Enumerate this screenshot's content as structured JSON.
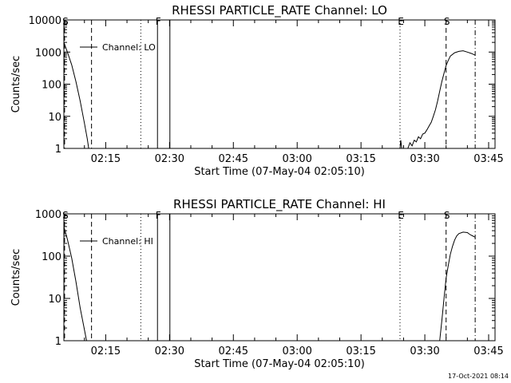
{
  "footer": {
    "timestamp": "17-Oct-2021 08:14"
  },
  "chart_data": [
    {
      "type": "line",
      "title": "RHESSI PARTICLE_RATE Channel: LO",
      "xlabel": "Start Time (07-May-04 02:05:10)",
      "ylabel": "Counts/sec",
      "x_scale": "time",
      "y_scale": "log",
      "xlim": [
        "02:05:10",
        "03:46:30"
      ],
      "ylim": [
        1,
        10000
      ],
      "x_ticks": [
        "02:15",
        "02:30",
        "02:45",
        "03:00",
        "03:15",
        "03:30",
        "03:45"
      ],
      "y_ticks": [
        "1",
        "10",
        "100",
        "1000",
        "10000"
      ],
      "legend": {
        "entries": [
          "Channel: LO"
        ],
        "position": "top-left"
      },
      "markers": [
        {
          "label": "S",
          "time": "02:05:20",
          "style": "dashed"
        },
        {
          "label": "",
          "time": "02:11:40",
          "style": "dashed"
        },
        {
          "label": "",
          "time": "02:23:15",
          "style": "dotted"
        },
        {
          "label": "F",
          "time": "02:27:10",
          "style": "solid"
        },
        {
          "label": "",
          "time": "02:30:05",
          "style": "solid"
        },
        {
          "label": "E",
          "time": "03:24:10",
          "style": "dotted"
        },
        {
          "label": "S",
          "time": "03:35:00",
          "style": "dashed"
        },
        {
          "label": "",
          "time": "03:41:50",
          "style": "dashdot"
        }
      ],
      "series": [
        {
          "name": "Channel: LO",
          "segments": [
            [
              [
                "02:05:10",
                2000
              ],
              [
                "02:06:00",
                1000
              ],
              [
                "02:07:00",
                400
              ],
              [
                "02:08:00",
                120
              ],
              [
                "02:09:00",
                30
              ],
              [
                "02:10:00",
                6
              ],
              [
                "02:10:40",
                2
              ],
              [
                "02:11:00",
                1
              ]
            ],
            [
              [
                "03:24:10",
                1
              ],
              [
                "03:24:20",
                1.8
              ],
              [
                "03:24:35",
                1
              ]
            ],
            [
              [
                "03:26:00",
                1
              ],
              [
                "03:26:30",
                1.5
              ],
              [
                "03:27:00",
                1.2
              ],
              [
                "03:27:30",
                1.8
              ],
              [
                "03:28:00",
                1.6
              ],
              [
                "03:28:30",
                2.3
              ],
              [
                "03:29:00",
                2
              ],
              [
                "03:29:30",
                2.8
              ],
              [
                "03:30:00",
                3
              ],
              [
                "03:30:30",
                3.8
              ],
              [
                "03:31:00",
                5
              ],
              [
                "03:31:30",
                6.5
              ],
              [
                "03:32:00",
                10
              ],
              [
                "03:32:30",
                16
              ],
              [
                "03:33:00",
                30
              ],
              [
                "03:33:30",
                60
              ],
              [
                "03:34:00",
                120
              ],
              [
                "03:34:30",
                220
              ],
              [
                "03:35:00",
                380
              ],
              [
                "03:35:30",
                550
              ],
              [
                "03:36:00",
                750
              ],
              [
                "03:37:00",
                950
              ],
              [
                "03:38:00",
                1050
              ],
              [
                "03:39:00",
                1100
              ],
              [
                "03:40:00",
                1000
              ],
              [
                "03:41:00",
                900
              ],
              [
                "03:41:50",
                800
              ]
            ]
          ]
        }
      ]
    },
    {
      "type": "line",
      "title": "RHESSI PARTICLE_RATE Channel: HI",
      "xlabel": "Start Time (07-May-04 02:05:10)",
      "ylabel": "Counts/sec",
      "x_scale": "time",
      "y_scale": "log",
      "xlim": [
        "02:05:10",
        "03:46:30"
      ],
      "ylim": [
        1,
        1000
      ],
      "x_ticks": [
        "02:15",
        "02:30",
        "02:45",
        "03:00",
        "03:15",
        "03:30",
        "03:45"
      ],
      "y_ticks": [
        "1",
        "10",
        "100",
        "1000"
      ],
      "legend": {
        "entries": [
          "Channel: HI"
        ],
        "position": "top-left"
      },
      "markers": [
        {
          "label": "S",
          "time": "02:05:20",
          "style": "dashed"
        },
        {
          "label": "",
          "time": "02:11:40",
          "style": "dashed"
        },
        {
          "label": "",
          "time": "02:23:15",
          "style": "dotted"
        },
        {
          "label": "F",
          "time": "02:27:10",
          "style": "solid"
        },
        {
          "label": "",
          "time": "02:30:05",
          "style": "solid"
        },
        {
          "label": "E",
          "time": "03:24:10",
          "style": "dotted"
        },
        {
          "label": "S",
          "time": "03:35:00",
          "style": "dashed"
        },
        {
          "label": "",
          "time": "03:41:50",
          "style": "dashdot"
        }
      ],
      "series": [
        {
          "name": "Channel: HI",
          "segments": [
            [
              [
                "02:05:10",
                500
              ],
              [
                "02:06:00",
                250
              ],
              [
                "02:07:00",
                90
              ],
              [
                "02:08:00",
                25
              ],
              [
                "02:09:00",
                6
              ],
              [
                "02:10:00",
                1.8
              ],
              [
                "02:10:30",
                1
              ]
            ],
            [
              [
                "03:33:30",
                1
              ],
              [
                "03:34:00",
                3
              ],
              [
                "03:34:30",
                10
              ],
              [
                "03:35:00",
                30
              ],
              [
                "03:35:30",
                60
              ],
              [
                "03:36:00",
                110
              ],
              [
                "03:36:30",
                170
              ],
              [
                "03:37:00",
                240
              ],
              [
                "03:37:30",
                300
              ],
              [
                "03:38:00",
                340
              ],
              [
                "03:39:00",
                370
              ],
              [
                "03:40:00",
                360
              ],
              [
                "03:40:30",
                330
              ],
              [
                "03:41:00",
                310
              ],
              [
                "03:41:50",
                280
              ]
            ]
          ]
        }
      ]
    }
  ]
}
